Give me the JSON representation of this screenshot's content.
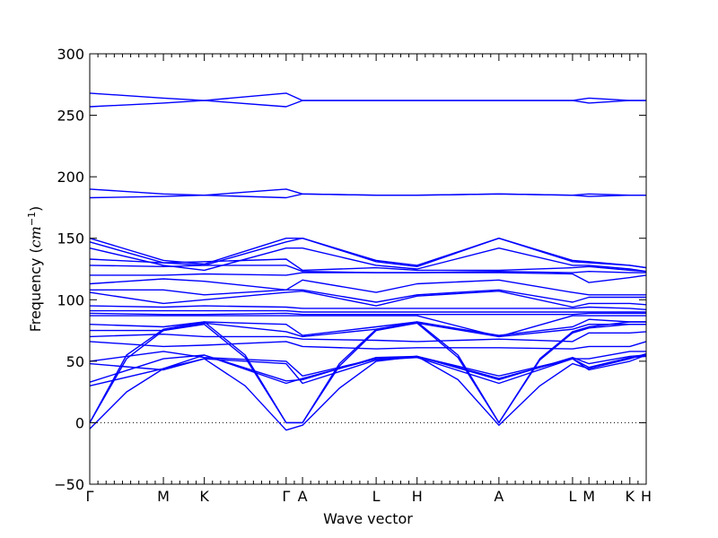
{
  "chart_data": {
    "type": "line",
    "title": "",
    "xlabel": "Wave vector",
    "ylabel_text": "Frequency (",
    "ylabel_unit": "cm",
    "ylabel_exp": "−1",
    "ylabel_close": ")",
    "ylim": [
      -50,
      300
    ],
    "yticks": [
      -50,
      0,
      50,
      100,
      150,
      200,
      250,
      300
    ],
    "ytick_labels": [
      "−50",
      "0",
      "50",
      "100",
      "150",
      "200",
      "250",
      "300"
    ],
    "kpoints": [
      {
        "label": "Γ",
        "x": 0.0
      },
      {
        "label": "M",
        "x": 1.8
      },
      {
        "label": "K",
        "x": 2.8
      },
      {
        "label": "Γ",
        "x": 4.8
      },
      {
        "label": "A",
        "x": 5.2
      },
      {
        "label": "L",
        "x": 7.0
      },
      {
        "label": "H",
        "x": 8.0
      },
      {
        "label": "A",
        "x": 10.0
      },
      {
        "label": "L",
        "x": 11.8
      },
      {
        "label": "M",
        "x": 12.2
      },
      {
        "label": "K",
        "x": 13.2
      },
      {
        "label": "H",
        "x": 13.6
      }
    ],
    "xlim": [
      0,
      13.6
    ],
    "zero_line": true,
    "series_color": "#0000ff",
    "series": [
      {
        "x": [
          0,
          1.8,
          2.8,
          4.8,
          5.2,
          7.0,
          8.0,
          10.0,
          11.8,
          12.2,
          13.2,
          13.6
        ],
        "y": [
          268,
          264,
          262,
          268,
          262,
          262,
          262,
          262,
          262,
          264,
          262,
          262
        ]
      },
      {
        "x": [
          0,
          1.8,
          2.8,
          4.8,
          5.2,
          7.0,
          8.0,
          10.0,
          11.8,
          12.2,
          13.2,
          13.6
        ],
        "y": [
          257,
          260,
          262,
          257,
          262,
          262,
          262,
          262,
          262,
          260,
          262,
          262
        ]
      },
      {
        "x": [
          0,
          1.8,
          2.8,
          4.8,
          5.2,
          7.0,
          8.0,
          10.0,
          11.8,
          12.2,
          13.2,
          13.6
        ],
        "y": [
          190,
          186,
          185,
          190,
          186,
          185,
          185,
          186,
          185,
          186,
          185,
          185
        ]
      },
      {
        "x": [
          0,
          1.8,
          2.8,
          4.8,
          5.2,
          7.0,
          8.0,
          10.0,
          11.8,
          12.2,
          13.2,
          13.6
        ],
        "y": [
          183,
          184,
          185,
          183,
          186,
          185,
          185,
          186,
          185,
          184,
          185,
          185
        ]
      },
      {
        "x": [
          0,
          1.8,
          2.8,
          4.8,
          5.2,
          7.0,
          8.0,
          10.0,
          11.8,
          12.2,
          13.2,
          13.6
        ],
        "y": [
          150,
          132,
          129,
          150,
          150,
          132,
          128,
          150,
          132,
          131,
          128,
          126
        ]
      },
      {
        "x": [
          0,
          1.8,
          2.8,
          4.8,
          5.2,
          7.0,
          8.0,
          10.0,
          11.8,
          12.2,
          13.2,
          13.6
        ],
        "y": [
          147,
          130,
          128,
          147,
          150,
          131,
          127,
          150,
          131,
          130,
          128,
          126
        ]
      },
      {
        "x": [
          0,
          1.8,
          2.8,
          4.8,
          5.2,
          7.0,
          8.0,
          10.0,
          11.8,
          12.2,
          13.2,
          13.6
        ],
        "y": [
          142,
          128,
          124,
          142,
          142,
          128,
          125,
          142,
          128,
          128,
          125,
          123
        ]
      },
      {
        "x": [
          0,
          1.8,
          2.8,
          4.8,
          5.2,
          7.0,
          8.0,
          10.0,
          11.8,
          12.2,
          13.2,
          13.6
        ],
        "y": [
          133,
          130,
          131,
          133,
          124,
          126,
          124,
          124,
          126,
          127,
          124,
          123
        ]
      },
      {
        "x": [
          0,
          1.8,
          2.8,
          4.8,
          5.2,
          7.0,
          8.0,
          10.0,
          11.8,
          12.2,
          13.2,
          13.6
        ],
        "y": [
          128,
          127,
          128,
          128,
          123,
          122,
          122,
          123,
          122,
          123,
          122,
          122
        ]
      },
      {
        "x": [
          0,
          1.8,
          2.8,
          4.8,
          5.2,
          7.0,
          8.0,
          10.0,
          11.8,
          12.2,
          13.2,
          13.6
        ],
        "y": [
          120,
          120,
          121,
          120,
          122,
          122,
          122,
          122,
          121,
          114,
          118,
          120
        ]
      },
      {
        "x": [
          0,
          1.8,
          2.8,
          4.8,
          5.2,
          7.0,
          8.0,
          10.0,
          11.8,
          12.2,
          13.2,
          13.6
        ],
        "y": [
          113,
          117,
          115,
          108,
          116,
          106,
          113,
          116,
          106,
          104,
          104,
          104
        ]
      },
      {
        "x": [
          0,
          1.8,
          2.8,
          4.8,
          5.2,
          7.0,
          8.0,
          10.0,
          11.8,
          12.2,
          13.2,
          13.6
        ],
        "y": [
          108,
          108,
          104,
          108,
          108,
          98,
          104,
          108,
          98,
          102,
          102,
          102
        ]
      },
      {
        "x": [
          0,
          1.8,
          2.8,
          4.8,
          5.2,
          7.0,
          8.0,
          10.0,
          11.8,
          12.2,
          13.2,
          13.6
        ],
        "y": [
          106,
          97,
          100,
          106,
          107,
          95,
          103,
          107,
          94,
          97,
          97,
          96
        ]
      },
      {
        "x": [
          0,
          1.8,
          2.8,
          4.8,
          5.2,
          7.0,
          8.0,
          10.0,
          11.8,
          12.2,
          13.2,
          13.6
        ],
        "y": [
          95,
          94,
          95,
          94,
          93,
          93,
          93,
          93,
          93,
          94,
          93,
          92
        ]
      },
      {
        "x": [
          0,
          1.8,
          2.8,
          4.8,
          5.2,
          7.0,
          8.0,
          10.0,
          11.8,
          12.2,
          13.2,
          13.6
        ],
        "y": [
          91,
          91,
          91,
          91,
          90,
          90,
          90,
          90,
          90,
          90,
          90,
          90
        ]
      },
      {
        "x": [
          0,
          1.8,
          2.8,
          4.8,
          5.2,
          7.0,
          8.0,
          10.0,
          11.8,
          12.2,
          13.2,
          13.6
        ],
        "y": [
          89,
          88,
          88,
          89,
          88,
          88,
          88,
          88,
          88,
          89,
          89,
          89
        ]
      },
      {
        "x": [
          0,
          1.8,
          2.8,
          4.8,
          5.2,
          7.0,
          8.0,
          10.0,
          11.8,
          12.2,
          13.2,
          13.6
        ],
        "y": [
          87,
          87,
          87,
          87,
          87,
          87,
          87,
          70,
          87,
          87,
          87,
          87
        ]
      },
      {
        "x": [
          0,
          1.8,
          2.8,
          4.8,
          5.2,
          7.0,
          8.0,
          10.0,
          11.8,
          12.2,
          13.2,
          13.6
        ],
        "y": [
          80,
          78,
          82,
          80,
          71,
          78,
          82,
          71,
          78,
          84,
          82,
          82
        ]
      },
      {
        "x": [
          0,
          1.8,
          2.8,
          4.8,
          5.2,
          7.0,
          8.0,
          10.0,
          11.8,
          12.2,
          13.2,
          13.6
        ],
        "y": [
          75,
          75,
          81,
          74,
          70,
          76,
          81,
          70,
          76,
          80,
          80,
          80
        ]
      },
      {
        "x": [
          0,
          1.8,
          2.8,
          4.8,
          5.2,
          7.0,
          8.0,
          10.0,
          11.8,
          12.2,
          13.2,
          13.6
        ],
        "y": [
          70,
          72,
          70,
          70,
          68,
          67,
          66,
          68,
          66,
          73,
          73,
          74
        ]
      },
      {
        "x": [
          0,
          1.8,
          2.8,
          4.8,
          5.2,
          7.0,
          8.0,
          10.0,
          11.8,
          12.2,
          13.2,
          13.6
        ],
        "y": [
          66,
          62,
          63,
          66,
          62,
          60,
          61,
          61,
          60,
          62,
          62,
          66
        ]
      },
      {
        "x": [
          0,
          1.8,
          2.8,
          4.8,
          5.2,
          7.0,
          8.0,
          10.0,
          11.8,
          12.2,
          13.2,
          13.6
        ],
        "y": [
          50,
          58,
          53,
          50,
          38,
          52,
          54,
          38,
          52,
          52,
          58,
          58
        ]
      },
      {
        "x": [
          0,
          1.8,
          2.8,
          4.8,
          5.2,
          7.0,
          8.0,
          10.0,
          11.8,
          12.2,
          13.2,
          13.6
        ],
        "y": [
          48,
          43,
          52,
          48,
          32,
          51,
          53,
          32,
          52,
          43,
          50,
          55
        ]
      },
      {
        "x": [
          0,
          1.8,
          2.8,
          4.8,
          5.2,
          7.0,
          8.0,
          10.0,
          11.8,
          12.2,
          13.2,
          13.6
        ],
        "y": [
          33,
          52,
          55,
          34,
          35,
          53,
          54,
          35,
          53,
          48,
          54,
          55
        ]
      },
      {
        "x": [
          0,
          1.8,
          2.8,
          4.8,
          5.2,
          7.0,
          8.0,
          10.0,
          11.8,
          12.2,
          13.2,
          13.6
        ],
        "y": [
          30,
          44,
          55,
          32,
          36,
          52,
          54,
          36,
          52,
          45,
          53,
          54
        ]
      },
      {
        "x": [
          0,
          0.9,
          1.8,
          2.8,
          3.8,
          4.8,
          5.2,
          6.1,
          7.0,
          8.0,
          9.0,
          10.0,
          11.0,
          11.8,
          12.2,
          13.2,
          13.6
        ],
        "y": [
          0,
          55,
          76,
          82,
          55,
          0,
          0,
          48,
          76,
          82,
          55,
          0,
          52,
          74,
          78,
          82,
          82
        ]
      },
      {
        "x": [
          0,
          0.9,
          1.8,
          2.8,
          3.8,
          4.8,
          5.2,
          6.1,
          7.0,
          8.0,
          9.0,
          10.0,
          11.0,
          11.8,
          12.2,
          13.2,
          13.6
        ],
        "y": [
          0,
          52,
          75,
          80,
          53,
          0,
          0,
          46,
          75,
          81,
          53,
          0,
          51,
          73,
          77,
          80,
          80
        ]
      },
      {
        "x": [
          0,
          0.9,
          1.8,
          2.8,
          3.8,
          4.8,
          5.2,
          6.1,
          7.0,
          8.0,
          9.0,
          10.0,
          11.0,
          11.8,
          12.2,
          13.2,
          13.6
        ],
        "y": [
          -5,
          25,
          44,
          52,
          30,
          -6,
          -2,
          28,
          50,
          54,
          35,
          -2,
          30,
          48,
          44,
          52,
          56
        ]
      }
    ]
  }
}
